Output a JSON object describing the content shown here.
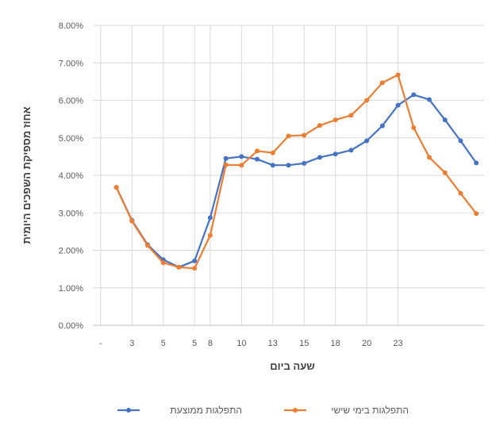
{
  "chart_data": {
    "type": "line",
    "title": "",
    "xlabel": "שעה ביום",
    "ylabel": "אחוז מספיקת השפכים היומית",
    "ylim": [
      0,
      0.08
    ],
    "y_ticks": [
      "0.00%",
      "1.00%",
      "2.00%",
      "3.00%",
      "4.00%",
      "5.00%",
      "6.00%",
      "7.00%",
      "8.00%"
    ],
    "x_tick_labels": [
      "-",
      "3",
      "5",
      "5",
      "8",
      "10",
      "13",
      "15",
      "18",
      "20",
      "23"
    ],
    "grid": true,
    "legend_position": "bottom",
    "x": [
      1,
      2,
      3,
      4,
      5,
      6,
      7,
      8,
      9,
      10,
      11,
      12,
      13,
      14,
      15,
      16,
      17,
      18,
      19,
      20,
      21,
      22,
      23,
      24
    ],
    "series": [
      {
        "name": "התפלגות ממוצעת",
        "color": "#4472C4",
        "values": [
          0.0368,
          0.028,
          0.0215,
          0.0175,
          0.0155,
          0.0172,
          0.0287,
          0.0445,
          0.045,
          0.0443,
          0.0427,
          0.0427,
          0.0432,
          0.0448,
          0.0457,
          0.0467,
          0.0492,
          0.0532,
          0.0587,
          0.0615,
          0.0602,
          0.0548,
          0.0492,
          0.0433
        ]
      },
      {
        "name": "התפלגות בימי שישי",
        "color": "#ED7D31",
        "values": [
          0.0368,
          0.0278,
          0.0213,
          0.0167,
          0.0155,
          0.0152,
          0.024,
          0.0428,
          0.0427,
          0.0465,
          0.046,
          0.0505,
          0.0507,
          0.0533,
          0.0548,
          0.056,
          0.06,
          0.0647,
          0.0668,
          0.0527,
          0.0448,
          0.0407,
          0.0352,
          0.0298
        ]
      }
    ]
  }
}
